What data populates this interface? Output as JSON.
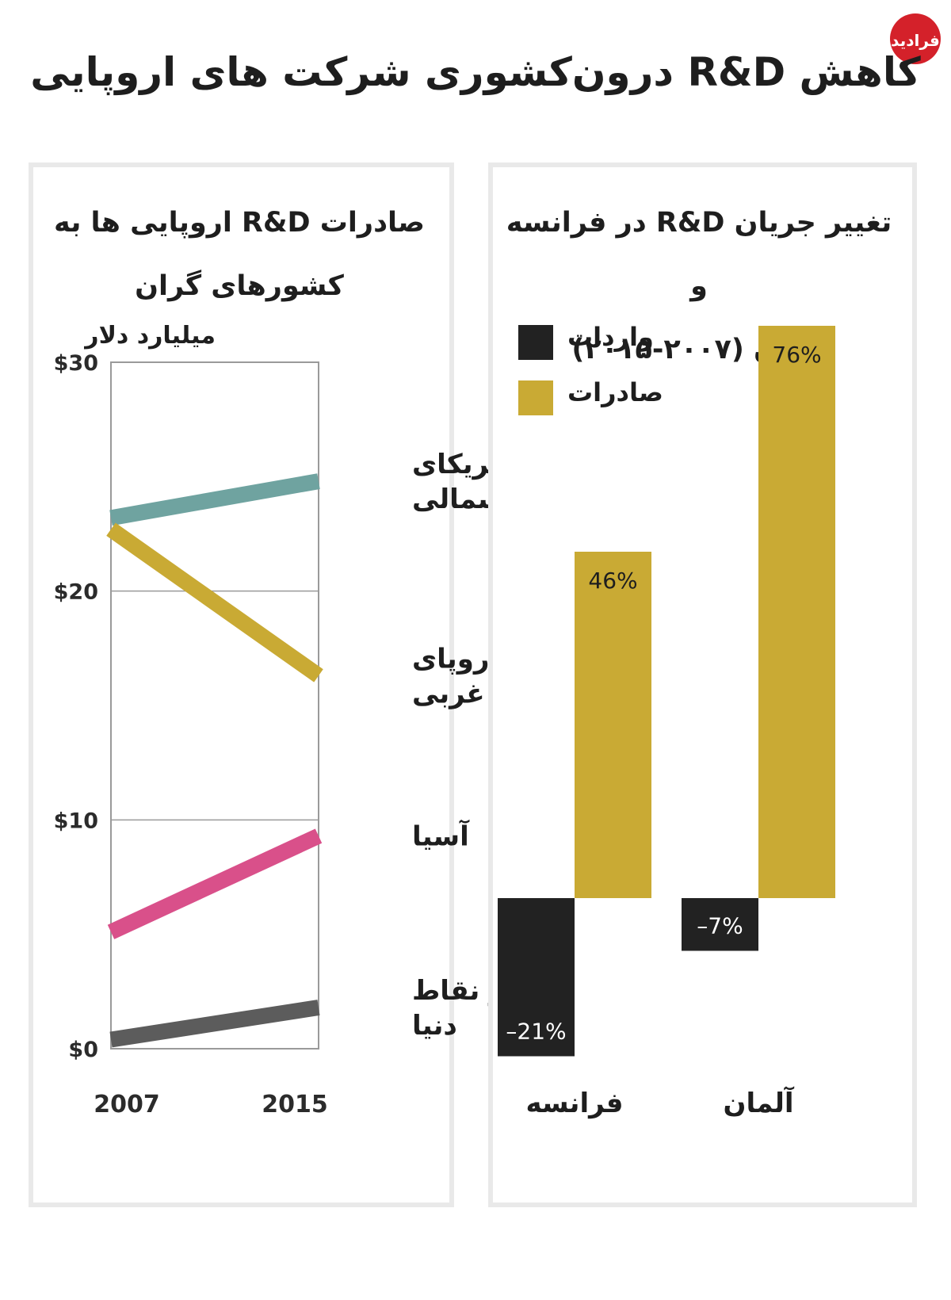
{
  "title": "کاهش R&D درون‌کشوری شرکت های اروپایی",
  "logo": {
    "text": "فرادید",
    "color": "#d4212a"
  },
  "left_panel": {
    "title_line1": "صادرات R&D اروپایی ها به",
    "title_line2": "کشورهای گران",
    "unit": "میلیارد دلار"
  },
  "right_panel": {
    "title_line1": "تغییر جریان R&D در فرانسه و",
    "title_line2": "آلمان (۲۰۰۷-۲۰۱۵)"
  },
  "colors": {
    "north_america": "#6fa3a0",
    "western_europe": "#c9aa34",
    "asia": "#d9508a",
    "rest_of_world": "#5c5c5c",
    "imports": "#222222",
    "exports": "#c9aa34"
  },
  "chart_data": [
    {
      "type": "line",
      "title": "صادرات R&D اروپایی ها به کشورهای گران",
      "ylabel": "میلیارد دلار",
      "x": [
        "2007",
        "2015"
      ],
      "ylim": [
        0,
        30
      ],
      "yticks": [
        "$0",
        "$10",
        "$20",
        "$30"
      ],
      "grid": true,
      "series": [
        {
          "name": "آمریکای شمالی",
          "label_lines": [
            "آمریکای",
            "شمالی"
          ],
          "values": [
            23.2,
            24.8
          ],
          "color": "#6fa3a0"
        },
        {
          "name": "اروپای غربی",
          "label_lines": [
            "اروپای",
            "غربی"
          ],
          "values": [
            22.7,
            16.3
          ],
          "color": "#c9aa34"
        },
        {
          "name": "آسیا",
          "label_lines": [
            "آسیا"
          ],
          "values": [
            5.1,
            9.3
          ],
          "color": "#d9508a"
        },
        {
          "name": "دیگر نقاط دنیا",
          "label_lines": [
            "دیگر نقاط",
            "دنیا"
          ],
          "values": [
            0.4,
            1.8
          ],
          "color": "#5c5c5c"
        }
      ]
    },
    {
      "type": "bar",
      "title": "تغییر جریان R&D در فرانسه و آلمان (۲۰۰۷-۲۰۱۵)",
      "categories": [
        "فرانسه",
        "آلمان"
      ],
      "series": [
        {
          "name": "واردات",
          "values": [
            -21,
            -7
          ],
          "labels": [
            "–21%",
            "–7%"
          ],
          "color": "#222222"
        },
        {
          "name": "صادرات",
          "values": [
            46,
            76
          ],
          "labels": [
            "46%",
            "76%"
          ],
          "color": "#c9aa34"
        }
      ],
      "legend": "top-left"
    }
  ]
}
